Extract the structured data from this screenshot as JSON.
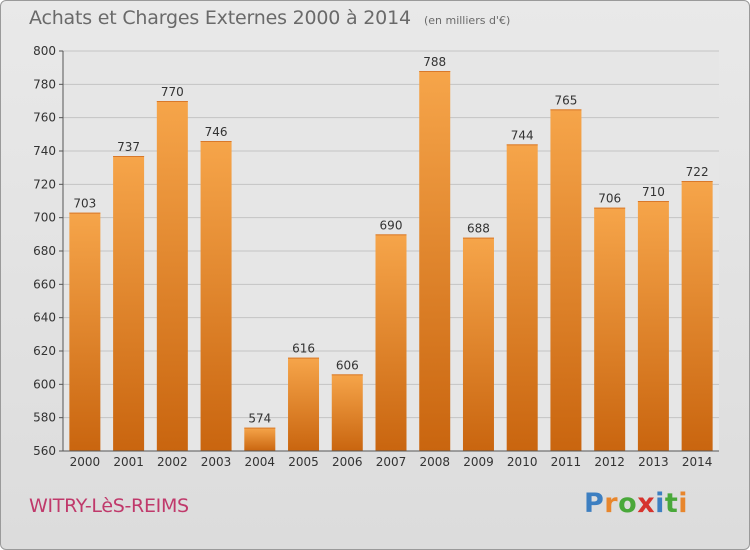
{
  "header": {
    "title": "Achats et Charges Externes 2000 à 2014",
    "unit": "(en milliers d'€)"
  },
  "footer": {
    "commune": "WITRY-LèS-REIMS",
    "brand": [
      "P",
      "r",
      "o",
      "x",
      "i",
      "t",
      "i"
    ],
    "brand_colors": [
      "#3d7fc1",
      "#e8862c",
      "#49a83a",
      "#d6332d",
      "#3d7fc1",
      "#49a83a",
      "#e8862c"
    ]
  },
  "colors": {
    "bar_light": "#f6a54a",
    "bar_dark": "#c9650f",
    "grid": "#c4c4c4",
    "axis": "#555555",
    "text": "#333333"
  },
  "chart_data": {
    "type": "bar",
    "title": "Achats et Charges Externes 2000 à 2014",
    "subtitle": "(en milliers d'€)",
    "xlabel": "",
    "ylabel": "",
    "categories": [
      "2000",
      "2001",
      "2002",
      "2003",
      "2004",
      "2005",
      "2006",
      "2007",
      "2008",
      "2009",
      "2010",
      "2011",
      "2012",
      "2013",
      "2014"
    ],
    "values": [
      703,
      737,
      770,
      746,
      574,
      616,
      606,
      690,
      788,
      688,
      744,
      765,
      706,
      710,
      722
    ],
    "ylim": [
      560,
      800
    ],
    "yticks": [
      560,
      580,
      600,
      620,
      640,
      660,
      680,
      700,
      720,
      740,
      760,
      780,
      800
    ],
    "grid": true,
    "legend": "none"
  }
}
